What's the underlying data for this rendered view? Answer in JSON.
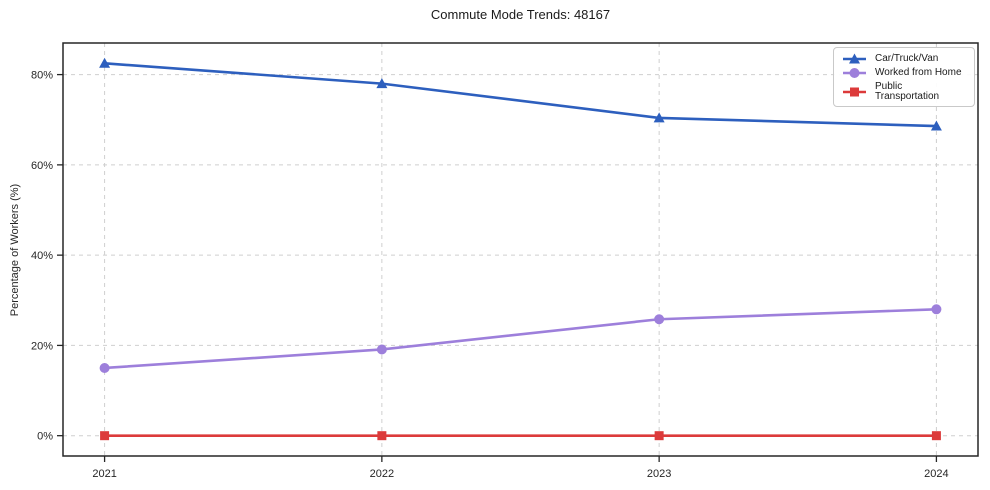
{
  "title": "Commute Mode Trends: 48167",
  "chart_data": {
    "type": "line",
    "title": "Commute Mode Trends: 48167",
    "xlabel": "",
    "ylabel": "Percentage of Workers (%)",
    "x": [
      2021,
      2022,
      2023,
      2024
    ],
    "series": [
      {
        "name": "Car/Truck/Van",
        "values": [
          82.5,
          78.0,
          70.4,
          68.6
        ],
        "color": "#2d5fbe",
        "marker": "triangle"
      },
      {
        "name": "Worked from Home",
        "values": [
          15.0,
          19.1,
          25.8,
          28.0
        ],
        "color": "#9d7fdb",
        "marker": "circle"
      },
      {
        "name": "Public Transportation",
        "values": [
          0.0,
          0.0,
          0.0,
          0.0
        ],
        "color": "#dc3a3a",
        "marker": "square"
      }
    ],
    "xticks": [
      2021,
      2022,
      2023,
      2024
    ],
    "yticks": [
      0,
      20,
      40,
      60,
      80
    ],
    "ytick_suffix": "%",
    "xlim": [
      2020.85,
      2024.15
    ],
    "ylim": [
      -4.5,
      87
    ],
    "grid": true,
    "grid_style": "dashed",
    "grid_color": "#cfcfcf",
    "axis_color": "#262626",
    "legend_position": "upper right"
  }
}
